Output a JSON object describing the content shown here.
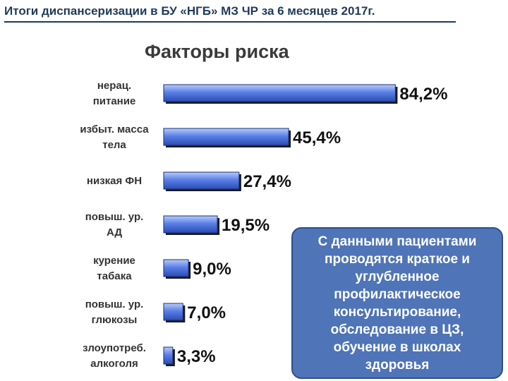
{
  "header": {
    "title": "Итоги диспансеризации в БУ «НГБ» МЗ ЧР за 6 месяцев 2017г."
  },
  "chart_data": {
    "type": "bar",
    "orientation": "horizontal",
    "title": "Факторы риска",
    "categories": [
      [
        "нерац.",
        "питание"
      ],
      [
        "избыт. масса",
        "тела"
      ],
      [
        "низкая ФН"
      ],
      [
        "повыш. ур.",
        "АД"
      ],
      [
        "курение",
        "табака"
      ],
      [
        "повыш. ур.",
        "глюкозы"
      ],
      [
        "злоупотреб.",
        "алкоголя"
      ]
    ],
    "values": [
      84.2,
      45.4,
      27.4,
      19.5,
      9.0,
      7.0,
      3.3
    ],
    "data_labels": [
      "84,2%",
      "45,4%",
      "27,4%",
      "19,5%",
      "9,0%",
      "7,0%",
      "3,3%"
    ],
    "xlim": [
      0,
      100
    ],
    "grid": false,
    "colors": {
      "bar": "#5b7fe8",
      "bar_light": "#b9ccf7",
      "bar_dark": "#2a4bb3",
      "label": "#111111"
    }
  },
  "note": {
    "text": "С данными пациентами проводятся краткое и углубленное профилактическое консультирование, обследование в ЦЗ, обучение в школах здоровья"
  }
}
